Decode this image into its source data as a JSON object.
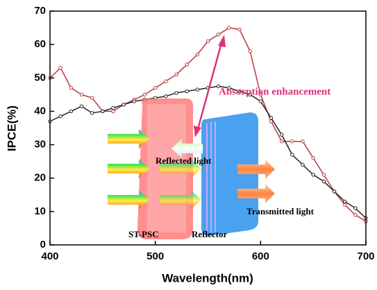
{
  "chart_data": {
    "type": "line",
    "x_label": "Wavelength(nm)",
    "y_label": "IPCE(%)",
    "x": [
      400,
      410,
      420,
      430,
      440,
      450,
      460,
      470,
      480,
      490,
      500,
      510,
      520,
      530,
      540,
      550,
      560,
      570,
      580,
      590,
      600,
      610,
      620,
      630,
      640,
      650,
      660,
      670,
      680,
      690,
      700
    ],
    "series": [
      {
        "color": "#b83a3a",
        "values": [
          50,
          53,
          47,
          45,
          44,
          40,
          40,
          42,
          43.5,
          45,
          47,
          49,
          51,
          54,
          57,
          61,
          63,
          65,
          64.5,
          58,
          45,
          37,
          31,
          31,
          31,
          26,
          21,
          16,
          12,
          9,
          7
        ]
      },
      {
        "color": "#222222",
        "values": [
          37,
          38.5,
          40,
          41.5,
          39.5,
          40,
          41,
          42,
          43,
          43.5,
          44,
          44.5,
          45.5,
          46,
          46.5,
          47,
          47.5,
          47,
          46,
          45,
          43,
          38,
          33,
          27,
          24,
          21,
          19,
          16,
          13,
          11,
          8
        ]
      }
    ],
    "xlim": [
      400,
      700
    ],
    "xticks": [
      400,
      500,
      600,
      700
    ],
    "ylim": [
      0,
      70
    ],
    "yticks": [
      0,
      10,
      20,
      30,
      40,
      50,
      60,
      70
    ],
    "annotations": [
      "Absorption enhancement",
      "Reflected light",
      "Transmitted light",
      "ST-PSC",
      "Reflector"
    ]
  }
}
